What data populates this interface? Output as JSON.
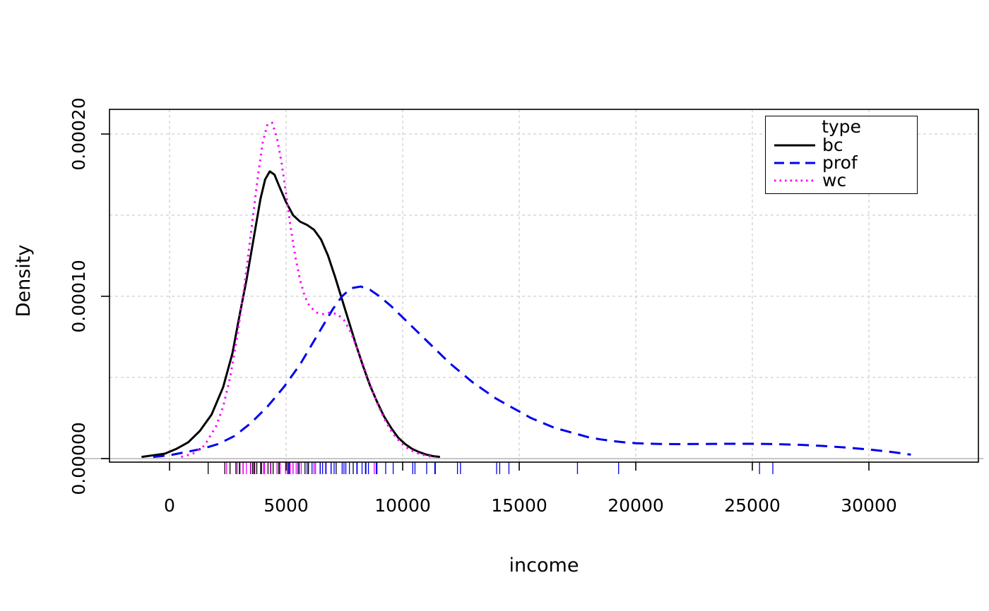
{
  "chart_data": {
    "type": "line",
    "title": "",
    "xlabel": "income",
    "ylabel": "Density",
    "xlim": [
      -2576,
      34697
    ],
    "ylim": [
      -2.2e-06,
      0.0002152
    ],
    "x_ticks": [
      0,
      5000,
      10000,
      15000,
      20000,
      25000,
      30000
    ],
    "y_ticks": [
      0,
      0.0001,
      0.0002
    ],
    "y_tick_labels": [
      "0.00000",
      "0.00010",
      "0.00020"
    ],
    "y_grid": [
      0,
      5e-05,
      0.0001,
      0.00015,
      0.0002
    ],
    "grid": true,
    "colors": {
      "grid": "#d4d4d4",
      "zero_line": "#c6c6c6",
      "box": "#000000",
      "axis_text": "#000000"
    },
    "legend": {
      "title": "type",
      "position": "top-right",
      "entries": [
        {
          "label": "bc"
        },
        {
          "label": "prof"
        },
        {
          "label": "wc"
        }
      ]
    },
    "series": [
      {
        "name": "bc",
        "color": "#000000",
        "dash": "solid",
        "points": [
          [
            -1200,
            1e-06
          ],
          [
            -700,
            2e-06
          ],
          [
            -200,
            3e-06
          ],
          [
            300,
            6e-06
          ],
          [
            800,
            1e-05
          ],
          [
            1300,
            1.7e-05
          ],
          [
            1800,
            2.7e-05
          ],
          [
            2300,
            4.4e-05
          ],
          [
            2700,
            6.5e-05
          ],
          [
            3000,
            8.8e-05
          ],
          [
            3300,
            0.00011
          ],
          [
            3600,
            0.000135
          ],
          [
            3900,
            0.00016
          ],
          [
            4100,
            0.000172
          ],
          [
            4300,
            0.000177
          ],
          [
            4500,
            0.000175
          ],
          [
            4700,
            0.000168
          ],
          [
            5000,
            0.000158
          ],
          [
            5300,
            0.00015
          ],
          [
            5600,
            0.000146
          ],
          [
            5900,
            0.000144
          ],
          [
            6200,
            0.000141
          ],
          [
            6500,
            0.000135
          ],
          [
            6800,
            0.000125
          ],
          [
            7100,
            0.000112
          ],
          [
            7400,
            9.8e-05
          ],
          [
            7700,
            8.4e-05
          ],
          [
            8000,
            7e-05
          ],
          [
            8300,
            5.7e-05
          ],
          [
            8600,
            4.5e-05
          ],
          [
            8900,
            3.5e-05
          ],
          [
            9200,
            2.6e-05
          ],
          [
            9500,
            1.9e-05
          ],
          [
            9800,
            1.3e-05
          ],
          [
            10100,
            9e-06
          ],
          [
            10400,
            6e-06
          ],
          [
            10700,
            4e-06
          ],
          [
            11000,
            2.5e-06
          ],
          [
            11300,
            1.5e-06
          ],
          [
            11600,
            1e-06
          ]
        ]
      },
      {
        "name": "prof",
        "color": "#0000ee",
        "dash": "dashed",
        "points": [
          [
            -700,
            1e-06
          ],
          [
            0,
            2e-06
          ],
          [
            700,
            4e-06
          ],
          [
            1400,
            6e-06
          ],
          [
            2100,
            9e-06
          ],
          [
            2800,
            1.4e-05
          ],
          [
            3500,
            2.2e-05
          ],
          [
            4200,
            3.2e-05
          ],
          [
            4900,
            4.4e-05
          ],
          [
            5600,
            5.8e-05
          ],
          [
            6300,
            7.5e-05
          ],
          [
            7000,
            9.2e-05
          ],
          [
            7400,
            0.0001
          ],
          [
            7800,
            0.000105
          ],
          [
            8200,
            0.000106
          ],
          [
            8600,
            0.000104
          ],
          [
            9000,
            0.0001
          ],
          [
            9500,
            9.4e-05
          ],
          [
            10000,
            8.7e-05
          ],
          [
            10500,
            8e-05
          ],
          [
            11000,
            7.3e-05
          ],
          [
            11500,
            6.6e-05
          ],
          [
            12000,
            5.9e-05
          ],
          [
            12500,
            5.3e-05
          ],
          [
            13000,
            4.7e-05
          ],
          [
            13500,
            4.2e-05
          ],
          [
            14000,
            3.7e-05
          ],
          [
            14500,
            3.3e-05
          ],
          [
            15000,
            2.9e-05
          ],
          [
            15500,
            2.5e-05
          ],
          [
            16000,
            2.2e-05
          ],
          [
            16500,
            1.9e-05
          ],
          [
            17000,
            1.7e-05
          ],
          [
            17500,
            1.5e-05
          ],
          [
            18000,
            1.3e-05
          ],
          [
            18500,
            1.18e-05
          ],
          [
            19000,
            1.08e-05
          ],
          [
            19500,
            1e-05
          ],
          [
            20000,
            9.5e-06
          ],
          [
            20500,
            9.2e-06
          ],
          [
            21000,
            9e-06
          ],
          [
            22000,
            8.9e-06
          ],
          [
            23000,
            9e-06
          ],
          [
            24000,
            9.1e-06
          ],
          [
            25000,
            9.1e-06
          ],
          [
            26000,
            8.9e-06
          ],
          [
            27000,
            8.5e-06
          ],
          [
            28000,
            7.8e-06
          ],
          [
            29000,
            6.8e-06
          ],
          [
            30000,
            5.6e-06
          ],
          [
            30500,
            4.8e-06
          ],
          [
            31000,
            4e-06
          ],
          [
            31500,
            3e-06
          ],
          [
            31800,
            2.4e-06
          ]
        ]
      },
      {
        "name": "wc",
        "color": "#ff00ff",
        "dash": "dotted",
        "points": [
          [
            500,
            1e-06
          ],
          [
            1000,
            3e-06
          ],
          [
            1500,
            8e-06
          ],
          [
            2000,
            2e-05
          ],
          [
            2300,
            3.2e-05
          ],
          [
            2600,
            5e-05
          ],
          [
            2900,
            7.5e-05
          ],
          [
            3200,
            0.000105
          ],
          [
            3500,
            0.00014
          ],
          [
            3800,
            0.000175
          ],
          [
            4000,
            0.000195
          ],
          [
            4200,
            0.000206
          ],
          [
            4400,
            0.000207
          ],
          [
            4600,
            0.000198
          ],
          [
            4800,
            0.000183
          ],
          [
            5000,
            0.000163
          ],
          [
            5200,
            0.000142
          ],
          [
            5400,
            0.000124
          ],
          [
            5600,
            0.00011
          ],
          [
            5800,
            0.0001
          ],
          [
            6000,
            9.4e-05
          ],
          [
            6300,
            9e-05
          ],
          [
            6600,
            8.9e-05
          ],
          [
            6900,
            9e-05
          ],
          [
            7200,
            8.9e-05
          ],
          [
            7500,
            8.5e-05
          ],
          [
            7800,
            7.7e-05
          ],
          [
            8100,
            6.6e-05
          ],
          [
            8400,
            5.4e-05
          ],
          [
            8700,
            4.2e-05
          ],
          [
            9000,
            3.1e-05
          ],
          [
            9300,
            2.2e-05
          ],
          [
            9600,
            1.5e-05
          ],
          [
            9900,
            1e-05
          ],
          [
            10200,
            6.5e-06
          ],
          [
            10500,
            4e-06
          ],
          [
            10800,
            2.5e-06
          ],
          [
            11100,
            1.5e-06
          ],
          [
            11400,
            1e-06
          ]
        ]
      }
    ],
    "rug": [
      {
        "name": "bc",
        "color": "#000000",
        "values": [
          1656,
          2370,
          2594,
          2847,
          3000,
          3017,
          3472,
          3485,
          3565,
          3622,
          3652,
          3742,
          3910,
          3942,
          4224,
          4330,
          4443,
          4614,
          4686,
          4696,
          5134,
          5299,
          5511,
          5811,
          5959,
          6462,
          6686,
          6928,
          7147,
          7879,
          8895
        ]
      },
      {
        "name": "prof",
        "color": "#0000ee",
        "values": [
          4036,
          4741,
          5092,
          5562,
          5902,
          6112,
          6259,
          6462,
          6565,
          6716,
          6928,
          7059,
          7405,
          7482,
          7562,
          7716,
          8034,
          8049,
          8258,
          8403,
          8425,
          8532,
          8865,
          8871,
          8891,
          9271,
          9593,
          10432,
          10528,
          11030,
          11379,
          11401,
          12351,
          12480,
          14032,
          14163,
          14558,
          17498,
          19263,
          25308,
          25879
        ]
      },
      {
        "name": "wc",
        "color": "#ff00ff",
        "values": [
          2448,
          2901,
          3148,
          3161,
          3295,
          3485,
          3612,
          4036,
          4075,
          4348,
          4614,
          4741,
          4977,
          5052,
          5180,
          5299,
          5432,
          5648,
          6197,
          6259,
          6686,
          8780
        ]
      }
    ]
  }
}
